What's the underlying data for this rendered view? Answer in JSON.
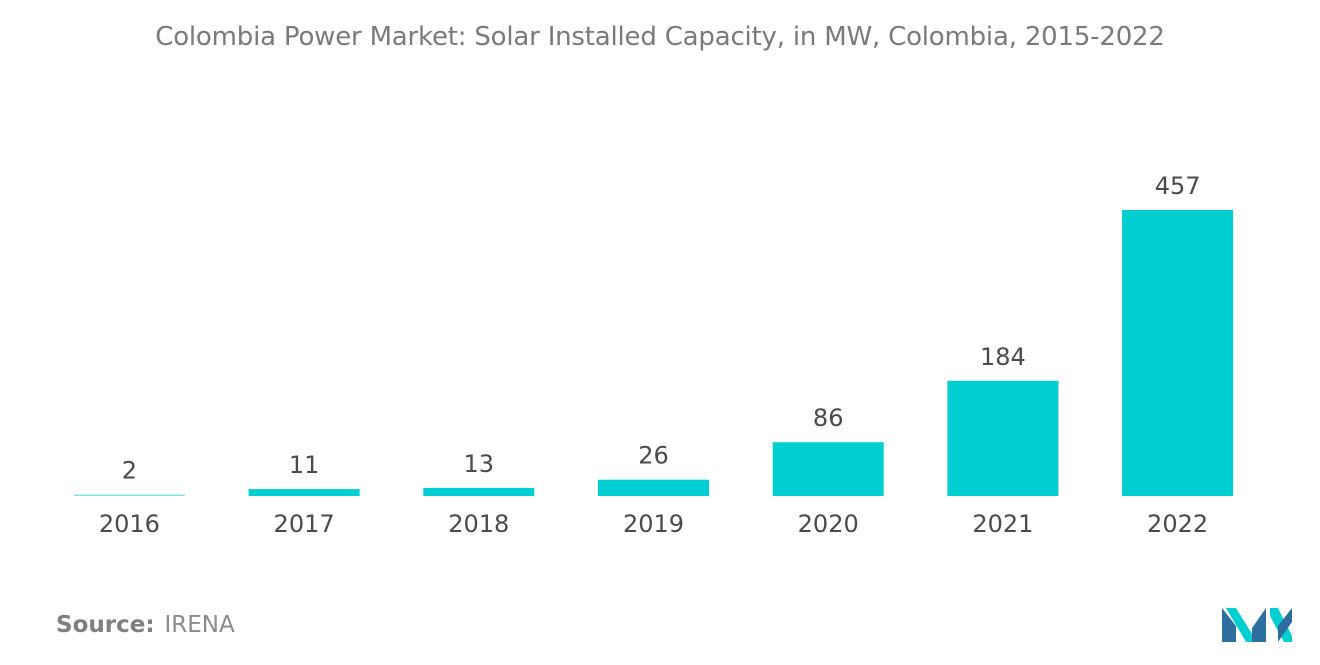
{
  "chart_data": {
    "type": "bar",
    "title": "Colombia Power Market: Solar Installed Capacity, in MW, Colombia, 2015-2022",
    "categories": [
      "2016",
      "2017",
      "2018",
      "2019",
      "2020",
      "2021",
      "2022"
    ],
    "values": [
      2,
      11,
      13,
      26,
      86,
      184,
      457
    ],
    "xlabel": "",
    "ylabel": "",
    "ylim": [
      0,
      457
    ],
    "grid": false,
    "legend": "none",
    "colors": {
      "bar": "#00CED1",
      "bar_faint": "#7FE3E5",
      "text": "#4A4A4A"
    }
  },
  "source": {
    "key": "Source:",
    "value": "IRENA"
  },
  "logo": {
    "icon": "mordor-intelligence-logo-icon",
    "color_dark": "#2E6E9E",
    "color_light": "#00CED1"
  }
}
